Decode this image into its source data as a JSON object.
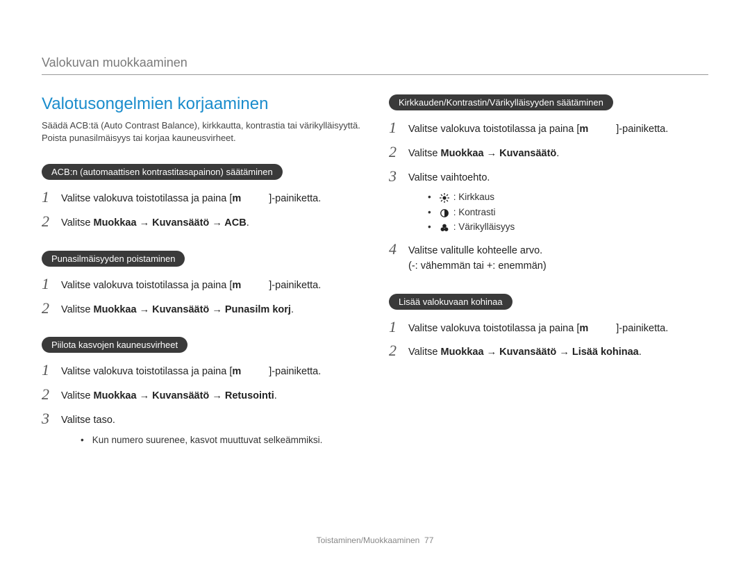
{
  "page": {
    "header": "Valokuvan muokkaaminen",
    "footer_prefix": "Toistaminen/Muokkaaminen",
    "footer_page": "77"
  },
  "left": {
    "title": "Valotusongelmien korjaaminen",
    "intro": "Säädä ACB:tä (Auto Contrast Balance), kirkkautta, kontrastia tai värikylläisyyttä. Poista punasilmäisyys tai korjaa kauneusvirheet.",
    "sections": [
      {
        "pill": "ACB:n (automaattisen kontrastitasapainon) säätäminen",
        "steps": [
          {
            "num": "1",
            "html": "Valitse valokuva toistotilassa ja paina [<b>m</b><span class=\"gap\"></span>]-painiketta."
          },
          {
            "num": "2",
            "html": "Valitse <b>Muokkaa → Kuvansäätö → ACB</b>."
          }
        ]
      },
      {
        "pill": "Punasilmäisyyden poistaminen",
        "steps": [
          {
            "num": "1",
            "html": "Valitse valokuva toistotilassa ja paina [<b>m</b><span class=\"gap\"></span>]-painiketta."
          },
          {
            "num": "2",
            "html": "Valitse <b>Muokkaa → Kuvansäätö → Punasilm korj</b>."
          }
        ]
      },
      {
        "pill": "Piilota kasvojen kauneusvirheet",
        "steps": [
          {
            "num": "1",
            "html": "Valitse valokuva toistotilassa ja paina [<b>m</b><span class=\"gap\"></span>]-painiketta."
          },
          {
            "num": "2",
            "html": "Valitse <b>Muokkaa → Kuvansäätö → Retusointi</b>."
          },
          {
            "num": "3",
            "html": "Valitse taso.",
            "bullets_plain": [
              "Kun numero suurenee, kasvot muuttuvat selkeämmiksi."
            ]
          }
        ]
      }
    ]
  },
  "right": {
    "sections": [
      {
        "pill": "Kirkkauden/Kontrastin/Värikylläisyyden säätäminen",
        "steps": [
          {
            "num": "1",
            "html": "Valitse valokuva toistotilassa ja paina [<b>m</b><span class=\"gap\"></span>]-painiketta."
          },
          {
            "num": "2",
            "html": "Valitse <b>Muokkaa → Kuvansäätö</b>."
          },
          {
            "num": "3",
            "html": "Valitse vaihtoehto.",
            "icon_bullets": [
              {
                "icon": "brightness",
                "label": ": Kirkkaus"
              },
              {
                "icon": "contrast",
                "label": ": Kontrasti"
              },
              {
                "icon": "saturation",
                "label": ": Värikylläisyys"
              }
            ]
          },
          {
            "num": "4",
            "html": "Valitse valitulle kohteelle arvo.<br>(-: vähemmän tai +: enemmän)"
          }
        ]
      },
      {
        "pill": "Lisää valokuvaan kohinaa",
        "steps": [
          {
            "num": "1",
            "html": "Valitse valokuva toistotilassa ja paina [<b>m</b><span class=\"gap\"></span>]-painiketta."
          },
          {
            "num": "2",
            "html": "Valitse <b>Muokkaa → Kuvansäätö → Lisää kohinaa</b>."
          }
        ]
      }
    ]
  },
  "icons": {
    "brightness": "<svg viewBox='0 0 16 16'><circle cx='8' cy='8' r='3' fill='#222'/><g stroke='#222' stroke-width='1.5'><line x1='8' y1='0' x2='8' y2='3'/><line x1='8' y1='13' x2='8' y2='16'/><line x1='0' y1='8' x2='3' y2='8'/><line x1='13' y1='8' x2='16' y2='8'/><line x1='2.3' y1='2.3' x2='4.5' y2='4.5'/><line x1='11.5' y1='11.5' x2='13.7' y2='13.7'/><line x1='2.3' y1='13.7' x2='4.5' y2='11.5'/><line x1='11.5' y1='4.5' x2='13.7' y2='2.3'/></g></svg>",
    "contrast": "<svg viewBox='0 0 16 16'><circle cx='8' cy='8' r='6' fill='none' stroke='#222' stroke-width='1.5'/><path d='M8 2 A6 6 0 0 1 8 14 Z' fill='#222'/></svg>",
    "saturation": "<svg viewBox='0 0 16 16'><circle cx='8' cy='5' r='3.2' fill='#222'/><circle cx='5' cy='10.5' r='3.2' fill='#222'/><circle cx='11' cy='10.5' r='3.2' fill='#222'/></svg>"
  }
}
